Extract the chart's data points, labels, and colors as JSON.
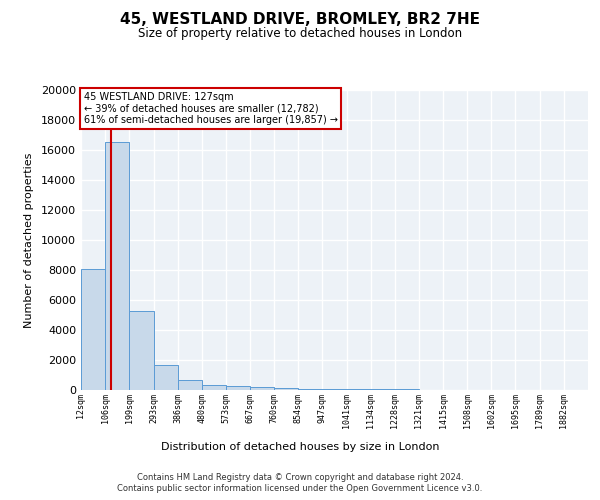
{
  "title": "45, WESTLAND DRIVE, BROMLEY, BR2 7HE",
  "subtitle": "Size of property relative to detached houses in London",
  "xlabel": "Distribution of detached houses by size in London",
  "ylabel": "Number of detached properties",
  "bar_color": "#c8d9ea",
  "bar_edge_color": "#5b9bd5",
  "annotation_box_color": "#cc0000",
  "red_line_color": "#cc0000",
  "background_color": "#edf2f7",
  "grid_color": "#ffffff",
  "footnote1": "Contains HM Land Registry data © Crown copyright and database right 2024.",
  "footnote2": "Contains public sector information licensed under the Open Government Licence v3.0.",
  "property_sqm": 127,
  "annotation_line1": "45 WESTLAND DRIVE: 127sqm",
  "annotation_line2": "← 39% of detached houses are smaller (12,782)",
  "annotation_line3": "61% of semi-detached houses are larger (19,857) →",
  "bin_edges": [
    12,
    106,
    199,
    293,
    386,
    480,
    573,
    667,
    760,
    854,
    947,
    1041,
    1134,
    1228,
    1321,
    1415,
    1508,
    1602,
    1695,
    1789,
    1882
  ],
  "bar_heights": [
    8100,
    16500,
    5300,
    1700,
    700,
    350,
    270,
    200,
    150,
    100,
    80,
    60,
    50,
    40,
    30,
    25,
    20,
    15,
    10,
    8
  ],
  "ylim": [
    0,
    20000
  ],
  "yticks": [
    0,
    2000,
    4000,
    6000,
    8000,
    10000,
    12000,
    14000,
    16000,
    18000,
    20000
  ]
}
